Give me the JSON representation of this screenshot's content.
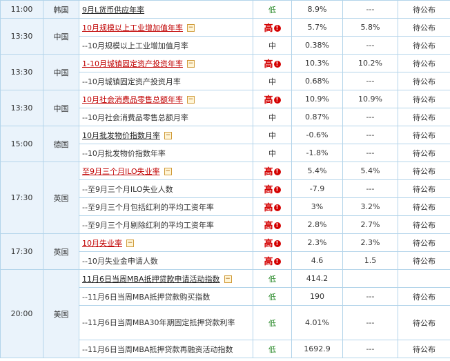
{
  "rows": [
    {
      "time": "11:00",
      "country": "韩国",
      "event": "9月L货币供应年率",
      "main": true,
      "red": false,
      "level": "低",
      "prev": "8.9%",
      "forecast": "---",
      "actual": "待公布"
    },
    {
      "time": "13:30",
      "country": "中国",
      "event": "10月规模以上工业增加值年率",
      "main": true,
      "red": true,
      "level": "高",
      "prev": "5.7%",
      "forecast": "5.8%",
      "actual": "待公布"
    },
    {
      "event": "--10月规模以上工业增加值月率",
      "level": "中",
      "prev": "0.38%",
      "forecast": "---",
      "actual": "待公布"
    },
    {
      "time": "13:30",
      "country": "中国",
      "event": "1-10月城镇固定资产投资年率",
      "main": true,
      "red": true,
      "level": "高",
      "prev": "10.3%",
      "forecast": "10.2%",
      "actual": "待公布"
    },
    {
      "event": "--10月城镇固定资产投资月率",
      "level": "中",
      "prev": "0.68%",
      "forecast": "---",
      "actual": "待公布"
    },
    {
      "time": "13:30",
      "country": "中国",
      "event": "10月社会消费品零售总额年率",
      "main": true,
      "red": true,
      "level": "高",
      "prev": "10.9%",
      "forecast": "10.9%",
      "actual": "待公布"
    },
    {
      "event": "--10月社会消费品零售总额月率",
      "level": "中",
      "prev": "0.87%",
      "forecast": "---",
      "actual": "待公布"
    },
    {
      "time": "15:00",
      "country": "德国",
      "event": "10月批发物价指数月率",
      "main": true,
      "red": false,
      "level": "中",
      "prev": "-0.6%",
      "forecast": "---",
      "actual": "待公布"
    },
    {
      "event": "--10月批发物价指数年率",
      "level": "中",
      "prev": "-1.8%",
      "forecast": "---",
      "actual": "待公布"
    },
    {
      "time": "17:30",
      "country": "英国",
      "event": "至9月三个月ILO失业率",
      "main": true,
      "red": true,
      "level": "高",
      "prev": "5.4%",
      "forecast": "5.4%",
      "actual": "待公布"
    },
    {
      "event": "--至9月三个月ILO失业人数",
      "level": "高",
      "prev": "-7.9",
      "forecast": "---",
      "actual": "待公布"
    },
    {
      "event": "--至9月三个月包括红利的平均工资年率",
      "level": "高",
      "prev": "3%",
      "forecast": "3.2%",
      "actual": "待公布"
    },
    {
      "event": "--至9月三个月剔除红利的平均工资年率",
      "level": "高",
      "prev": "2.8%",
      "forecast": "2.7%",
      "actual": "待公布"
    },
    {
      "time": "17:30",
      "country": "英国",
      "event": "10月失业率",
      "main": true,
      "red": true,
      "level": "高",
      "prev": "2.3%",
      "forecast": "2.3%",
      "actual": "待公布"
    },
    {
      "event": "--10月失业金申请人数",
      "level": "高",
      "prev": "4.6",
      "forecast": "1.5",
      "actual": "待公布"
    },
    {
      "time": "20:00",
      "country": "美国",
      "event": "11月6日当周MBA抵押贷款申请活动指数",
      "main": true,
      "red": false,
      "level": "低",
      "prev": "414.2",
      "forecast": "",
      "actual": ""
    },
    {
      "event": "--11月6日当周MBA抵押贷款购买指数",
      "level": "低",
      "prev": "190",
      "forecast": "---",
      "actual": "待公布"
    },
    {
      "event": "--11月6日当周MBA30年期固定抵押贷款利率",
      "level": "低",
      "prev": "4.01%",
      "forecast": "---",
      "actual": "待公布",
      "tall": true
    },
    {
      "event": "--11月6日当周MBA抵押贷款再融资活动指数",
      "level": "低",
      "prev": "1692.9",
      "forecast": "---",
      "actual": "待公布"
    }
  ],
  "icons": {
    "collapse": "minus-box-icon",
    "warning": "exclamation-circle-icon"
  },
  "colors": {
    "high": "#d40000",
    "low": "#2a8a2a",
    "border": "#b3d4ea",
    "side": "#eaf3fb",
    "link_red": "#c00000"
  }
}
